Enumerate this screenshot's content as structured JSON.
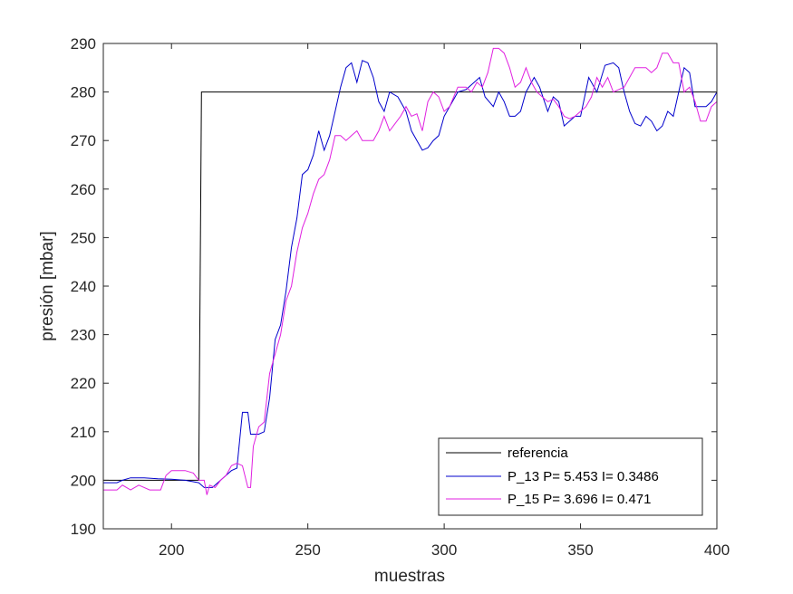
{
  "chart_data": {
    "type": "line",
    "title": "",
    "xlabel": "muestras",
    "ylabel": "presión [mbar]",
    "xlim": [
      175,
      400
    ],
    "ylim": [
      190,
      290
    ],
    "xticks": [
      200,
      250,
      300,
      350,
      400
    ],
    "yticks": [
      190,
      200,
      210,
      220,
      230,
      240,
      250,
      260,
      270,
      280,
      290
    ],
    "grid": false,
    "legend_position": "bottom-right",
    "series": [
      {
        "name": "referencia",
        "color": "#000000",
        "points": [
          [
            175,
            200
          ],
          [
            210,
            200
          ],
          [
            211,
            280
          ],
          [
            400,
            280
          ]
        ]
      },
      {
        "name": "P_13 P= 5.453 I= 0.3486",
        "color": "#0000cc",
        "points": [
          [
            175,
            199.5
          ],
          [
            180,
            199.5
          ],
          [
            182,
            200
          ],
          [
            185,
            200.5
          ],
          [
            190,
            200.5
          ],
          [
            195,
            200.3
          ],
          [
            200,
            200.2
          ],
          [
            205,
            200.0
          ],
          [
            210,
            199.5
          ],
          [
            212,
            198.5
          ],
          [
            215,
            198.5
          ],
          [
            218,
            200
          ],
          [
            220,
            201
          ],
          [
            222,
            202
          ],
          [
            224,
            202.5
          ],
          [
            226,
            214
          ],
          [
            228,
            214
          ],
          [
            229,
            209.5
          ],
          [
            232,
            209.5
          ],
          [
            234,
            210
          ],
          [
            236,
            217
          ],
          [
            238,
            229
          ],
          [
            240,
            232
          ],
          [
            242,
            239
          ],
          [
            244,
            248
          ],
          [
            246,
            254
          ],
          [
            248,
            263
          ],
          [
            250,
            264
          ],
          [
            252,
            267
          ],
          [
            254,
            272
          ],
          [
            256,
            268
          ],
          [
            258,
            271
          ],
          [
            260,
            276
          ],
          [
            262,
            281
          ],
          [
            264,
            285
          ],
          [
            266,
            286
          ],
          [
            268,
            282
          ],
          [
            270,
            286.5
          ],
          [
            272,
            286
          ],
          [
            274,
            283
          ],
          [
            276,
            278
          ],
          [
            278,
            276
          ],
          [
            280,
            280
          ],
          [
            283,
            279
          ],
          [
            286,
            276
          ],
          [
            288,
            272
          ],
          [
            290,
            270
          ],
          [
            292,
            268
          ],
          [
            294,
            268.5
          ],
          [
            296,
            270
          ],
          [
            298,
            271
          ],
          [
            300,
            275
          ],
          [
            302,
            277
          ],
          [
            305,
            280
          ],
          [
            308,
            280.5
          ],
          [
            310,
            281.5
          ],
          [
            313,
            283
          ],
          [
            315,
            279
          ],
          [
            318,
            277
          ],
          [
            320,
            280
          ],
          [
            322,
            278
          ],
          [
            324,
            275
          ],
          [
            326,
            275
          ],
          [
            328,
            276
          ],
          [
            330,
            280
          ],
          [
            333,
            283
          ],
          [
            335,
            281
          ],
          [
            338,
            276
          ],
          [
            340,
            279
          ],
          [
            342,
            278
          ],
          [
            344,
            273
          ],
          [
            346,
            274
          ],
          [
            348,
            275
          ],
          [
            350,
            275
          ],
          [
            353,
            283
          ],
          [
            356,
            280
          ],
          [
            359,
            285.5
          ],
          [
            362,
            286
          ],
          [
            364,
            285
          ],
          [
            366,
            280
          ],
          [
            368,
            276
          ],
          [
            370,
            273.5
          ],
          [
            372,
            273
          ],
          [
            374,
            275
          ],
          [
            376,
            274
          ],
          [
            378,
            272
          ],
          [
            380,
            273
          ],
          [
            382,
            276
          ],
          [
            384,
            275
          ],
          [
            386,
            280
          ],
          [
            388,
            285
          ],
          [
            390,
            284
          ],
          [
            392,
            277
          ],
          [
            396,
            277
          ],
          [
            398,
            278
          ],
          [
            400,
            280
          ]
        ]
      },
      {
        "name": "P_15 P= 3.696 I= 0.471",
        "color": "#e020e0",
        "points": [
          [
            175,
            198
          ],
          [
            180,
            198
          ],
          [
            182,
            199
          ],
          [
            185,
            198
          ],
          [
            188,
            199
          ],
          [
            192,
            198
          ],
          [
            196,
            198
          ],
          [
            198,
            201
          ],
          [
            200,
            202
          ],
          [
            205,
            202
          ],
          [
            208,
            201.5
          ],
          [
            210,
            200
          ],
          [
            212,
            200
          ],
          [
            213,
            197
          ],
          [
            214,
            199
          ],
          [
            216,
            198.5
          ],
          [
            218,
            200
          ],
          [
            220,
            201
          ],
          [
            222,
            203
          ],
          [
            224,
            203.5
          ],
          [
            226,
            203
          ],
          [
            228,
            198.5
          ],
          [
            229,
            198.5
          ],
          [
            230,
            207
          ],
          [
            232,
            211
          ],
          [
            234,
            212
          ],
          [
            236,
            222
          ],
          [
            238,
            226
          ],
          [
            240,
            230
          ],
          [
            242,
            237
          ],
          [
            244,
            240
          ],
          [
            246,
            247
          ],
          [
            248,
            252
          ],
          [
            250,
            255
          ],
          [
            252,
            259
          ],
          [
            254,
            262
          ],
          [
            256,
            263
          ],
          [
            258,
            266
          ],
          [
            260,
            271
          ],
          [
            262,
            271
          ],
          [
            264,
            270
          ],
          [
            266,
            271
          ],
          [
            268,
            272
          ],
          [
            270,
            270
          ],
          [
            274,
            270
          ],
          [
            276,
            272
          ],
          [
            278,
            275
          ],
          [
            280,
            272
          ],
          [
            282,
            273.5
          ],
          [
            284,
            275
          ],
          [
            286,
            277
          ],
          [
            288,
            275
          ],
          [
            290,
            275.5
          ],
          [
            292,
            272
          ],
          [
            294,
            278
          ],
          [
            296,
            280
          ],
          [
            298,
            279
          ],
          [
            300,
            276
          ],
          [
            302,
            277
          ],
          [
            305,
            281
          ],
          [
            308,
            281
          ],
          [
            310,
            280
          ],
          [
            312,
            282
          ],
          [
            314,
            281
          ],
          [
            316,
            284
          ],
          [
            318,
            289
          ],
          [
            320,
            289
          ],
          [
            322,
            288
          ],
          [
            324,
            285
          ],
          [
            326,
            281
          ],
          [
            328,
            282
          ],
          [
            330,
            285
          ],
          [
            332,
            282
          ],
          [
            334,
            280
          ],
          [
            336,
            279
          ],
          [
            338,
            278
          ],
          [
            340,
            278.5
          ],
          [
            342,
            277
          ],
          [
            344,
            275
          ],
          [
            346,
            274.5
          ],
          [
            348,
            275
          ],
          [
            350,
            276
          ],
          [
            352,
            277
          ],
          [
            354,
            279
          ],
          [
            356,
            283
          ],
          [
            358,
            281
          ],
          [
            360,
            283
          ],
          [
            362,
            280
          ],
          [
            364,
            280.5
          ],
          [
            366,
            281
          ],
          [
            368,
            283
          ],
          [
            370,
            285
          ],
          [
            374,
            285
          ],
          [
            376,
            284
          ],
          [
            378,
            285
          ],
          [
            380,
            288
          ],
          [
            382,
            288
          ],
          [
            384,
            286
          ],
          [
            386,
            286
          ],
          [
            388,
            280
          ],
          [
            390,
            281
          ],
          [
            392,
            278
          ],
          [
            394,
            274
          ],
          [
            396,
            274
          ],
          [
            398,
            277
          ],
          [
            400,
            278
          ]
        ]
      }
    ]
  }
}
